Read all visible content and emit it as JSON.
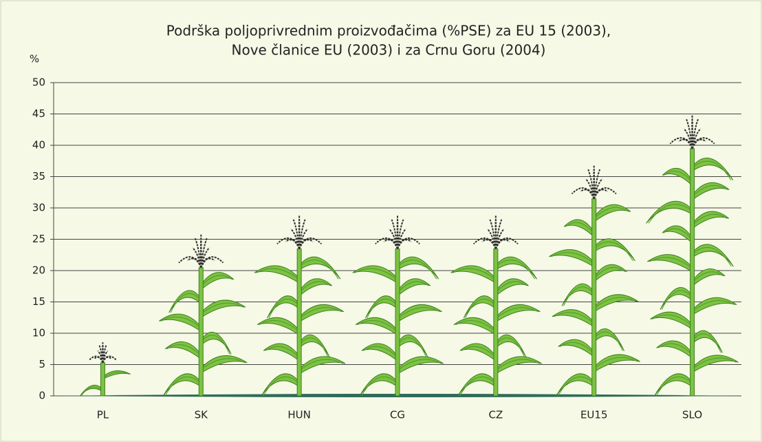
{
  "chart_data": {
    "type": "pictograph",
    "title": [
      "Podrška poljoprivrednim proizvođačima (%PSE) za EU 15 (2003),",
      "Nove članice EU (2003) i za Crnu Goru (2004)"
    ],
    "ylabel": "%",
    "categories": [
      "PL",
      "SK",
      "HUN",
      "CG",
      "CZ",
      "EU15",
      "SLO"
    ],
    "values": [
      8,
      25,
      28,
      28,
      28,
      36,
      44
    ],
    "color": "#7dc242",
    "ylim": [
      0,
      50
    ],
    "yticks": [
      0,
      5,
      10,
      15,
      20,
      25,
      30,
      35,
      40,
      45,
      50
    ],
    "grid": true
  }
}
